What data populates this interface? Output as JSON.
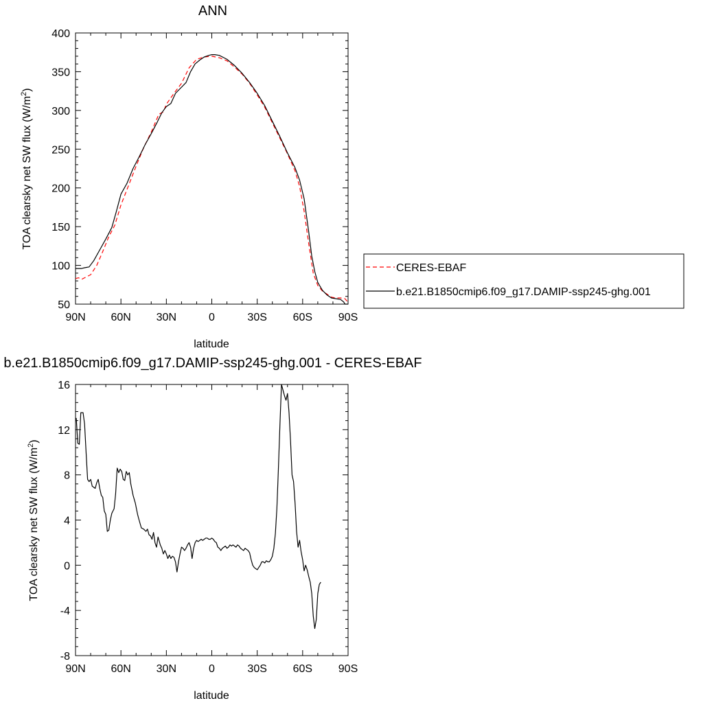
{
  "chart_data": [
    {
      "type": "line",
      "title": "ANN",
      "xlabel": "latitude",
      "ylabel": "TOA clearsky net SW flux (W/m",
      "ylabel_sup": "2",
      "ylabel_tail": ")",
      "xlim": [
        90,
        -90
      ],
      "ylim": [
        50,
        400
      ],
      "x_ticks": [
        90,
        60,
        30,
        0,
        -30,
        -60,
        -90
      ],
      "x_tick_labels": [
        "90N",
        "60N",
        "30N",
        "0",
        "30S",
        "60S",
        "90S"
      ],
      "y_ticks": [
        50,
        100,
        150,
        200,
        250,
        300,
        350,
        400
      ],
      "y_tick_labels": [
        "50",
        "100",
        "150",
        "200",
        "250",
        "300",
        "350",
        "400"
      ],
      "legend": {
        "placement": "right",
        "entries": [
          "CERES-EBAF",
          "b.e21.B1850cmip6.f09_g17.DAMIP-ssp245-ghg.001"
        ]
      },
      "series": [
        {
          "name": "CERES-EBAF",
          "color": "#ff0000",
          "style": "dashed",
          "points": [
            [
              90,
              83
            ],
            [
              88,
              84
            ],
            [
              86,
              82
            ],
            [
              84,
              84
            ],
            [
              80,
              88
            ],
            [
              76,
              100
            ],
            [
              72,
              118
            ],
            [
              68,
              137
            ],
            [
              64,
              152
            ],
            [
              60,
              178
            ],
            [
              56,
              198
            ],
            [
              50,
              228
            ],
            [
              45,
              252
            ],
            [
              40,
              272
            ],
            [
              35,
              295
            ],
            [
              32,
              298
            ],
            [
              30,
              308
            ],
            [
              25,
              322
            ],
            [
              20,
              335
            ],
            [
              15,
              355
            ],
            [
              10,
              366
            ],
            [
              5,
              369
            ],
            [
              0,
              370
            ],
            [
              -5,
              368
            ],
            [
              -10,
              364
            ],
            [
              -15,
              356
            ],
            [
              -20,
              347
            ],
            [
              -25,
              335
            ],
            [
              -30,
              320
            ],
            [
              -35,
              304
            ],
            [
              -40,
              284
            ],
            [
              -45,
              264
            ],
            [
              -50,
              244
            ],
            [
              -55,
              222
            ],
            [
              -58,
              202
            ],
            [
              -61,
              170
            ],
            [
              -64,
              128
            ],
            [
              -67,
              90
            ],
            [
              -70,
              74
            ],
            [
              -73,
              67
            ],
            [
              -76,
              63
            ],
            [
              -79,
              59
            ],
            [
              -82,
              58
            ],
            [
              -85,
              58
            ],
            [
              -88,
              57
            ],
            [
              -90,
              52
            ]
          ]
        },
        {
          "name": "b.e21.B1850cmip6.f09_g17.DAMIP-ssp245-ghg.001",
          "color": "#000000",
          "style": "solid",
          "points": [
            [
              90,
              96
            ],
            [
              88,
              96
            ],
            [
              86,
              96
            ],
            [
              84,
              97
            ],
            [
              81,
              98
            ],
            [
              78,
              106
            ],
            [
              74,
              120
            ],
            [
              70,
              134
            ],
            [
              66,
              149
            ],
            [
              63,
              170
            ],
            [
              60,
              192
            ],
            [
              56,
              206
            ],
            [
              52,
              225
            ],
            [
              48,
              240
            ],
            [
              44,
              256
            ],
            [
              40,
              270
            ],
            [
              36,
              285
            ],
            [
              33,
              297
            ],
            [
              30,
              305
            ],
            [
              27,
              309
            ],
            [
              24,
              322
            ],
            [
              20,
              330
            ],
            [
              17,
              336
            ],
            [
              14,
              350
            ],
            [
              11,
              360
            ],
            [
              8,
              365
            ],
            [
              5,
              369
            ],
            [
              2,
              371
            ],
            [
              0,
              372
            ],
            [
              -2,
              372
            ],
            [
              -5,
              371
            ],
            [
              -10,
              366
            ],
            [
              -15,
              358
            ],
            [
              -20,
              348
            ],
            [
              -25,
              336
            ],
            [
              -30,
              322
            ],
            [
              -35,
              306
            ],
            [
              -40,
              286
            ],
            [
              -45,
              266
            ],
            [
              -50,
              245
            ],
            [
              -55,
              226
            ],
            [
              -58,
              210
            ],
            [
              -61,
              186
            ],
            [
              -64,
              143
            ],
            [
              -66,
              112
            ],
            [
              -68,
              92
            ],
            [
              -70,
              78
            ],
            [
              -73,
              68
            ],
            [
              -76,
              62
            ],
            [
              -79,
              58
            ],
            [
              -82,
              57
            ],
            [
              -85,
              56
            ],
            [
              -87,
              53
            ],
            [
              -88,
              50
            ],
            [
              -90,
              50
            ]
          ]
        }
      ]
    },
    {
      "type": "line",
      "title": "b.e21.B1850cmip6.f09_g17.DAMIP-ssp245-ghg.001 - CERES-EBAF",
      "xlabel": "latitude",
      "ylabel": "TOA clearsky net SW flux (W/m",
      "ylabel_sup": "2",
      "ylabel_tail": ")",
      "xlim": [
        90,
        -90
      ],
      "ylim": [
        -8,
        16
      ],
      "x_ticks": [
        90,
        60,
        30,
        0,
        -30,
        -60,
        -90
      ],
      "x_tick_labels": [
        "90N",
        "60N",
        "30N",
        "0",
        "30S",
        "60S",
        "90S"
      ],
      "y_ticks": [
        -8,
        -4,
        0,
        4,
        8,
        12,
        16
      ],
      "y_tick_labels": [
        "-8",
        "-4",
        "0",
        "4",
        "8",
        "12",
        "16"
      ],
      "series": [
        {
          "color": "#000000",
          "style": "solid",
          "points": [
            [
              90,
              13.0
            ],
            [
              89.5,
              13.0
            ],
            [
              88.5,
              10.8
            ],
            [
              87.5,
              10.7
            ],
            [
              86.5,
              13.5
            ],
            [
              85,
              13.5
            ],
            [
              84,
              12.5
            ],
            [
              83,
              10.0
            ],
            [
              82,
              7.6
            ],
            [
              81,
              7.4
            ],
            [
              80,
              7.6
            ],
            [
              79,
              7.0
            ],
            [
              77,
              6.8
            ],
            [
              76,
              7.3
            ],
            [
              75,
              7.6
            ],
            [
              74,
              6.8
            ],
            [
              73,
              6.2
            ],
            [
              72,
              6.0
            ],
            [
              71,
              4.8
            ],
            [
              70,
              4.5
            ],
            [
              69,
              3.0
            ],
            [
              68,
              3.1
            ],
            [
              67,
              4.0
            ],
            [
              66,
              4.6
            ],
            [
              64.5,
              5.0
            ],
            [
              63.5,
              6.3
            ],
            [
              62.5,
              8.6
            ],
            [
              61.5,
              8.2
            ],
            [
              60.5,
              8.5
            ],
            [
              59.5,
              8.3
            ],
            [
              58.5,
              7.6
            ],
            [
              57.5,
              7.5
            ],
            [
              56.5,
              8.3
            ],
            [
              55.5,
              8.0
            ],
            [
              54.5,
              8.2
            ],
            [
              53.5,
              7.2
            ],
            [
              52,
              6.2
            ],
            [
              50.5,
              5.5
            ],
            [
              49,
              4.5
            ],
            [
              48,
              4.0
            ],
            [
              46.5,
              3.3
            ],
            [
              45,
              3.2
            ],
            [
              43.5,
              3.0
            ],
            [
              42.5,
              3.2
            ],
            [
              41.5,
              2.7
            ],
            [
              40.5,
              2.6
            ],
            [
              39.5,
              2.3
            ],
            [
              38.5,
              2.9
            ],
            [
              37.5,
              2.0
            ],
            [
              36.5,
              1.6
            ],
            [
              35.5,
              2.5
            ],
            [
              34,
              1.8
            ],
            [
              33,
              1.5
            ],
            [
              32,
              1.0
            ],
            [
              31,
              1.3
            ],
            [
              30,
              1.0
            ],
            [
              29,
              0.6
            ],
            [
              28,
              0.9
            ],
            [
              27,
              0.6
            ],
            [
              26,
              0.8
            ],
            [
              25,
              0.7
            ],
            [
              24,
              0.3
            ],
            [
              23,
              -0.6
            ],
            [
              22,
              0.3
            ],
            [
              21,
              1.0
            ],
            [
              20,
              1.6
            ],
            [
              19,
              1.5
            ],
            [
              18,
              1.3
            ],
            [
              17,
              1.5
            ],
            [
              16,
              1.8
            ],
            [
              15,
              2.0
            ],
            [
              14,
              1.6
            ],
            [
              13,
              0.6
            ],
            [
              12,
              1.5
            ],
            [
              11,
              2.0
            ],
            [
              10,
              2.2
            ],
            [
              9,
              2.1
            ],
            [
              8,
              2.2
            ],
            [
              7,
              2.3
            ],
            [
              6,
              2.2
            ],
            [
              5,
              2.3
            ],
            [
              4,
              2.4
            ],
            [
              3,
              2.4
            ],
            [
              2,
              2.3
            ],
            [
              1,
              2.3
            ],
            [
              0,
              2.4
            ],
            [
              -1,
              2.3
            ],
            [
              -2,
              2.1
            ],
            [
              -3,
              2.0
            ],
            [
              -4,
              1.6
            ],
            [
              -5,
              1.5
            ],
            [
              -6,
              1.3
            ],
            [
              -7,
              1.5
            ],
            [
              -8,
              1.6
            ],
            [
              -9,
              1.7
            ],
            [
              -10,
              1.5
            ],
            [
              -11,
              1.6
            ],
            [
              -12,
              1.8
            ],
            [
              -13,
              1.7
            ],
            [
              -14,
              1.8
            ],
            [
              -15,
              1.7
            ],
            [
              -16,
              1.6
            ],
            [
              -17,
              1.8
            ],
            [
              -18,
              1.7
            ],
            [
              -19,
              1.5
            ],
            [
              -20,
              1.4
            ],
            [
              -21,
              1.3
            ],
            [
              -22,
              1.5
            ],
            [
              -23,
              1.4
            ],
            [
              -24,
              1.3
            ],
            [
              -25,
              1.1
            ],
            [
              -26,
              0.5
            ],
            [
              -27,
              0.0
            ],
            [
              -28,
              -0.2
            ],
            [
              -29,
              -0.3
            ],
            [
              -30,
              -0.4
            ],
            [
              -31,
              -0.2
            ],
            [
              -32,
              0.0
            ],
            [
              -33,
              0.3
            ],
            [
              -34,
              0.3
            ],
            [
              -35,
              0.2
            ],
            [
              -36,
              0.4
            ],
            [
              -37,
              0.3
            ],
            [
              -38,
              0.3
            ],
            [
              -39,
              0.5
            ],
            [
              -40,
              0.8
            ],
            [
              -41,
              1.5
            ],
            [
              -42,
              2.8
            ],
            [
              -43,
              5.0
            ],
            [
              -44,
              8.5
            ],
            [
              -45,
              12.5
            ],
            [
              -46,
              16.0
            ],
            [
              -47,
              15.5
            ],
            [
              -48,
              15.0
            ],
            [
              -49,
              14.6
            ],
            [
              -50,
              15.2
            ],
            [
              -51,
              13.5
            ],
            [
              -52,
              11.0
            ],
            [
              -53,
              8.0
            ],
            [
              -54,
              7.4
            ],
            [
              -55,
              5.5
            ],
            [
              -56,
              3.0
            ],
            [
              -57,
              1.6
            ],
            [
              -58,
              2.2
            ],
            [
              -59,
              1.2
            ],
            [
              -60,
              0.5
            ],
            [
              -61,
              -0.5
            ],
            [
              -62,
              0.0
            ],
            [
              -63,
              -0.4
            ],
            [
              -64,
              -1.0
            ],
            [
              -65,
              -1.5
            ],
            [
              -66,
              -2.5
            ],
            [
              -67,
              -4.5
            ],
            [
              -68,
              -5.6
            ],
            [
              -69,
              -4.8
            ],
            [
              -70,
              -2.5
            ],
            [
              -71,
              -1.7
            ],
            [
              -72,
              -1.5
            ]
          ]
        }
      ]
    }
  ]
}
